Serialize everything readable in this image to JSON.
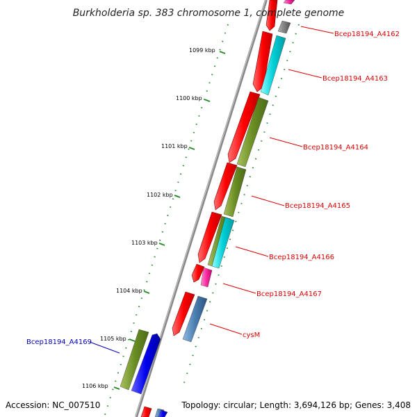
{
  "title": "Burkholderia sp. 383 chromosome 1, complete genome",
  "footer": {
    "accession": "Accession: NC_007510",
    "topology": "Topology: circular; Length: 3,694,126 bp; Genes: 3,408"
  },
  "ticks": [
    {
      "label": "1099 kbp"
    },
    {
      "label": "1100 kbp"
    },
    {
      "label": "1101 kbp"
    },
    {
      "label": "1102 kbp"
    },
    {
      "label": "1103 kbp"
    },
    {
      "label": "1104 kbp"
    },
    {
      "label": "1105 kbp"
    },
    {
      "label": "1106 kbp"
    }
  ],
  "genes": [
    {
      "label": "Bcep18194_A4162",
      "color": "#dd0000"
    },
    {
      "label": "Bcep18194_A4163",
      "color": "#dd0000"
    },
    {
      "label": "Bcep18194_A4164",
      "color": "#dd0000"
    },
    {
      "label": "Bcep18194_A4165",
      "color": "#dd0000"
    },
    {
      "label": "Bcep18194_A4166",
      "color": "#dd0000"
    },
    {
      "label": "Bcep18194_A4167",
      "color": "#dd0000"
    },
    {
      "label": "cysM",
      "color": "#dd0000"
    },
    {
      "label": "Bcep18194_A4169",
      "color": "#0000bb"
    }
  ],
  "colors": {
    "cds_forward": "#ff0000",
    "cog_cyan": "#00d0d8",
    "cog_olive": "#6b8e23",
    "cog_magenta": "#ff2aa0",
    "cog_steel": "#4a7fb0",
    "cog_blue": "#0000ee",
    "cog_gray": "#808080",
    "backbone": "#888888",
    "tick_green": "#2a8a2a"
  }
}
